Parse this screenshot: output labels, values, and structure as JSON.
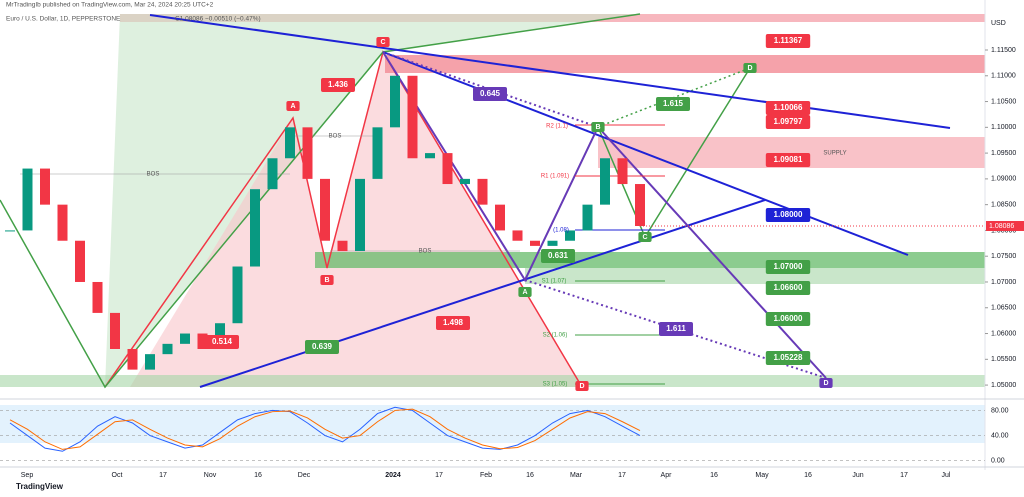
{
  "header": {
    "publisher": "MrTradingIb published on TradingView.com, Mar 24, 2024 20:25 UTC+2",
    "symbol": "Euro / U.S. Dollar, 1D, PEPPERSTONE",
    "ohlc": "C1.08086  −0.00510 (−0.47%)",
    "currency": "USD",
    "footer": "TradingView"
  },
  "chart_data": {
    "type": "candlestick",
    "series": [
      {
        "name": "EURUSD",
        "up_color": "#089981",
        "down_color": "#f23645",
        "values": [
          1.08,
          1.092,
          1.085,
          1.078,
          1.07,
          1.064,
          1.057,
          1.053,
          1.056,
          1.058,
          1.06,
          1.057,
          1.062,
          1.073,
          1.088,
          1.094,
          1.1,
          1.09,
          1.078,
          1.076,
          1.09,
          1.1,
          1.11,
          1.094,
          1.095,
          1.089,
          1.09,
          1.085,
          1.08,
          1.078,
          1.077,
          1.078,
          1.08,
          1.085,
          1.094,
          1.089,
          1.08086
        ]
      }
    ],
    "x_labels": [
      "Sep",
      "Oct",
      "17",
      "Nov",
      "16",
      "Dec",
      "2024",
      "17",
      "Feb",
      "16",
      "Mar",
      "17",
      "Apr",
      "16",
      "May",
      "16",
      "Jun",
      "17",
      "Jul"
    ],
    "ylim": [
      1.0473,
      1.1247
    ],
    "yticks": [
      {
        "value": 1.05,
        "label": "1.05000"
      },
      {
        "value": 1.055,
        "label": "1.05500"
      },
      {
        "value": 1.06,
        "label": "1.06000"
      },
      {
        "value": 1.065,
        "label": "1.06500"
      },
      {
        "value": 1.07,
        "label": "1.07000"
      },
      {
        "value": 1.075,
        "label": "1.07500"
      },
      {
        "value": 1.08,
        "label": "1.08000"
      },
      {
        "value": 1.085,
        "label": "1.08500"
      },
      {
        "value": 1.09,
        "label": "1.09000"
      },
      {
        "value": 1.095,
        "label": "1.09500"
      },
      {
        "value": 1.1,
        "label": "1.10000"
      },
      {
        "value": 1.105,
        "label": "1.10500"
      },
      {
        "value": 1.11,
        "label": "1.11000"
      },
      {
        "value": 1.115,
        "label": "1.11500"
      }
    ],
    "annotations": [
      "1.436",
      "0.514",
      "0.639",
      "1.498",
      "0.645",
      "1.615",
      "0.631",
      "1.611",
      "A",
      "B",
      "C",
      "D",
      "A",
      "B",
      "C",
      "D",
      "D",
      "1.11367",
      "1.10066",
      "1.09797",
      "1.09081",
      "1.08000",
      "1.07000",
      "1.06600",
      "1.06000",
      "1.05228",
      "R2 (1.1)",
      "R1 (1.091)",
      "S1 (1.07)",
      "S2 (1.06)",
      "S3 (1.05)",
      "SUPPLY",
      "BOS",
      "BOS",
      "BOS",
      "(1.08)"
    ],
    "oscillator": {
      "ylim": [
        -10,
        95
      ],
      "yticks": [
        {
          "value": 80,
          "label": "80.00"
        },
        {
          "value": 40,
          "label": "40.00"
        },
        {
          "value": 0,
          "label": "0.00"
        }
      ],
      "series": [
        {
          "name": "%K",
          "color": "#2962ff",
          "values": [
            60,
            40,
            20,
            15,
            30,
            55,
            70,
            60,
            40,
            30,
            20,
            25,
            45,
            65,
            75,
            80,
            78,
            60,
            40,
            30,
            50,
            75,
            85,
            80,
            60,
            40,
            30,
            20,
            18,
            25,
            40,
            60,
            75,
            80,
            70,
            55,
            40
          ]
        },
        {
          "name": "%D",
          "color": "#ff6d00",
          "values": [
            65,
            50,
            30,
            18,
            22,
            42,
            62,
            65,
            50,
            36,
            25,
            22,
            35,
            55,
            70,
            78,
            79,
            68,
            50,
            36,
            40,
            62,
            80,
            82,
            70,
            50,
            36,
            25,
            19,
            21,
            32,
            50,
            68,
            78,
            75,
            62,
            48
          ]
        }
      ]
    }
  }
}
